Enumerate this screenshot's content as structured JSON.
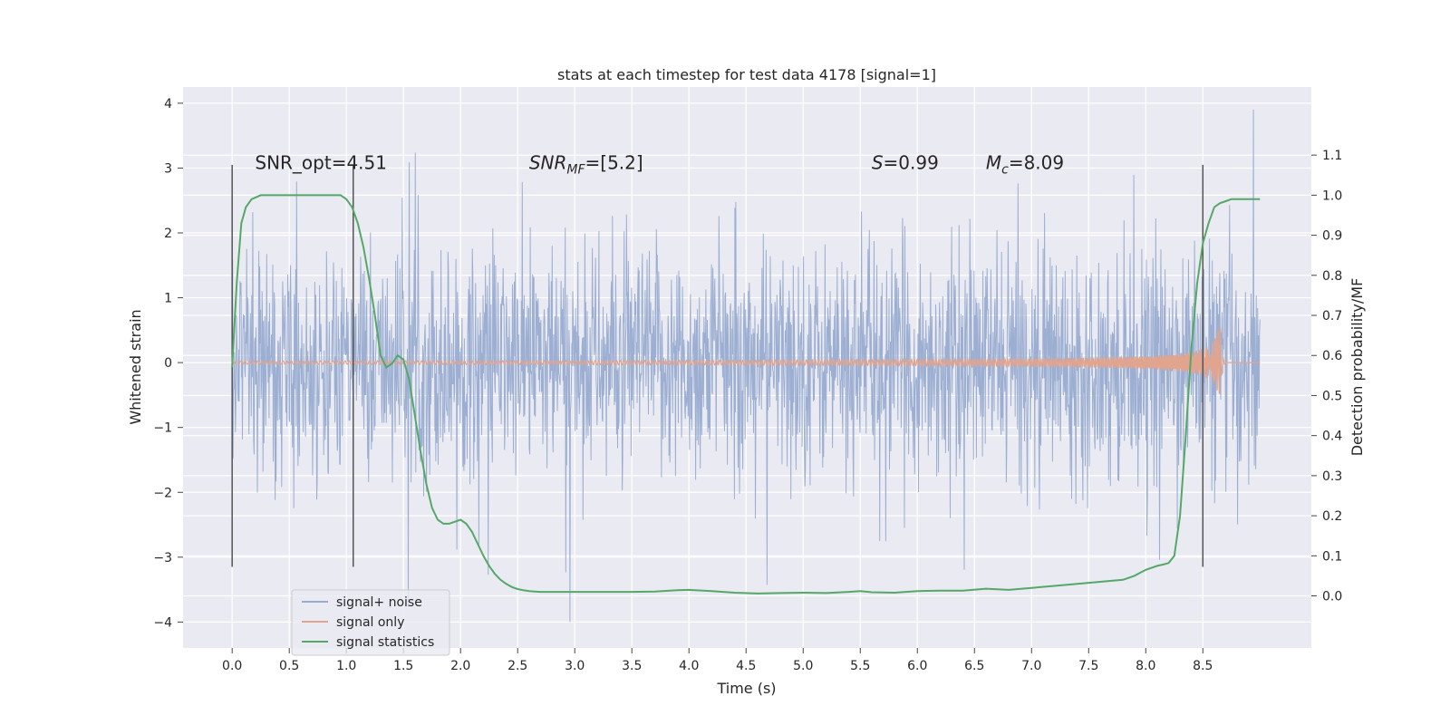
{
  "chart_data": {
    "type": "line",
    "title": "stats at each timestep for test data 4178 [signal=1]",
    "xlabel": "Time (s)",
    "ylabel": "Whitened strain",
    "y2label": "Detection probability/MF",
    "xlim": [
      -0.43,
      9.45
    ],
    "ylim": [
      -4.4,
      4.25
    ],
    "y2lim": [
      -0.13,
      1.27
    ],
    "x_ticks": [
      "0.0",
      "0.5",
      "1.0",
      "1.5",
      "2.0",
      "2.5",
      "3.0",
      "3.5",
      "4.0",
      "4.5",
      "5.0",
      "5.5",
      "6.0",
      "6.5",
      "7.0",
      "7.5",
      "8.0",
      "8.5"
    ],
    "y_ticks": [
      "4",
      "3",
      "2",
      "1",
      "0",
      "−1",
      "−2",
      "−3",
      "−4"
    ],
    "y2_ticks": [
      "1.1",
      "1.0",
      "0.9",
      "0.8",
      "0.7",
      "0.6",
      "0.5",
      "0.4",
      "0.3",
      "0.2",
      "0.1",
      "0.0"
    ],
    "grid": true,
    "colors": {
      "background": "#eaeaf2",
      "grid": "#ffffff",
      "noise": "#98acd0",
      "signal": "#e1a48f",
      "stats": "#55a868",
      "vline": "#555555",
      "text": "#262626"
    },
    "series": [
      {
        "name": "signal+ noise",
        "note": "dense whitened strain trace spanning t = 0.0 to 9.0 s",
        "t_range": [
          0.0,
          9.0
        ],
        "typical_band": [
          -1.2,
          1.2
        ],
        "spike_max": 3.9,
        "spike_min": -4.0
      },
      {
        "name": "signal only",
        "note": "chirp waveform, amplitude growing toward merger near t = 8.65 s",
        "t_range": [
          0.0,
          9.0
        ],
        "merger_time": 8.65,
        "peak_amplitude": 0.7
      },
      {
        "name": "signal statistics",
        "axis": "right",
        "x": [
          0.0,
          0.04,
          0.08,
          0.12,
          0.17,
          0.25,
          0.35,
          0.5,
          0.7,
          0.85,
          0.95,
          1.0,
          1.05,
          1.1,
          1.15,
          1.2,
          1.25,
          1.3,
          1.35,
          1.4,
          1.45,
          1.5,
          1.55,
          1.6,
          1.65,
          1.7,
          1.75,
          1.8,
          1.85,
          1.9,
          1.95,
          2.0,
          2.05,
          2.1,
          2.15,
          2.2,
          2.25,
          2.3,
          2.35,
          2.4,
          2.45,
          2.5,
          2.55,
          2.6,
          2.65,
          2.7,
          2.8,
          3.0,
          3.2,
          3.5,
          3.7,
          3.9,
          4.0,
          4.2,
          4.4,
          4.6,
          4.8,
          5.0,
          5.2,
          5.4,
          5.5,
          5.6,
          5.8,
          6.0,
          6.2,
          6.4,
          6.6,
          6.8,
          7.0,
          7.2,
          7.4,
          7.6,
          7.8,
          7.9,
          8.0,
          8.1,
          8.15,
          8.2,
          8.25,
          8.3,
          8.35,
          8.4,
          8.45,
          8.5,
          8.55,
          8.6,
          8.65,
          8.7,
          8.75,
          8.8,
          8.9,
          9.0
        ],
        "y": [
          0.57,
          0.78,
          0.93,
          0.97,
          0.99,
          1.0,
          1.0,
          1.0,
          1.0,
          1.0,
          1.0,
          0.99,
          0.97,
          0.93,
          0.87,
          0.79,
          0.7,
          0.6,
          0.57,
          0.58,
          0.6,
          0.59,
          0.54,
          0.45,
          0.36,
          0.28,
          0.22,
          0.19,
          0.18,
          0.18,
          0.185,
          0.19,
          0.18,
          0.16,
          0.13,
          0.1,
          0.075,
          0.055,
          0.04,
          0.03,
          0.022,
          0.017,
          0.014,
          0.012,
          0.011,
          0.01,
          0.01,
          0.01,
          0.01,
          0.01,
          0.011,
          0.014,
          0.015,
          0.012,
          0.008,
          0.006,
          0.007,
          0.008,
          0.007,
          0.01,
          0.012,
          0.009,
          0.008,
          0.012,
          0.013,
          0.013,
          0.018,
          0.015,
          0.02,
          0.025,
          0.03,
          0.035,
          0.04,
          0.05,
          0.065,
          0.075,
          0.078,
          0.082,
          0.1,
          0.2,
          0.4,
          0.62,
          0.78,
          0.88,
          0.93,
          0.97,
          0.98,
          0.985,
          0.99,
          0.99,
          0.99,
          0.99
        ]
      }
    ],
    "vertical_lines": [
      0.0,
      1.06,
      8.5
    ],
    "annotations": [
      {
        "text": "SNR_opt=4.51",
        "x": 0.2,
        "y": 3.0
      },
      {
        "text": "SNR",
        "sub": "MF",
        "rest": "=[5.2]",
        "x": 2.6,
        "y": 3.0
      },
      {
        "text": "S",
        "rest": "=0.99",
        "x": 5.6,
        "y": 3.0
      },
      {
        "text": "M",
        "sub": "c",
        "rest": "=8.09",
        "x": 6.6,
        "y": 3.0
      }
    ],
    "legend": {
      "position": "lower-left",
      "entries": [
        "signal+ noise",
        "signal only",
        "signal statistics"
      ]
    }
  }
}
